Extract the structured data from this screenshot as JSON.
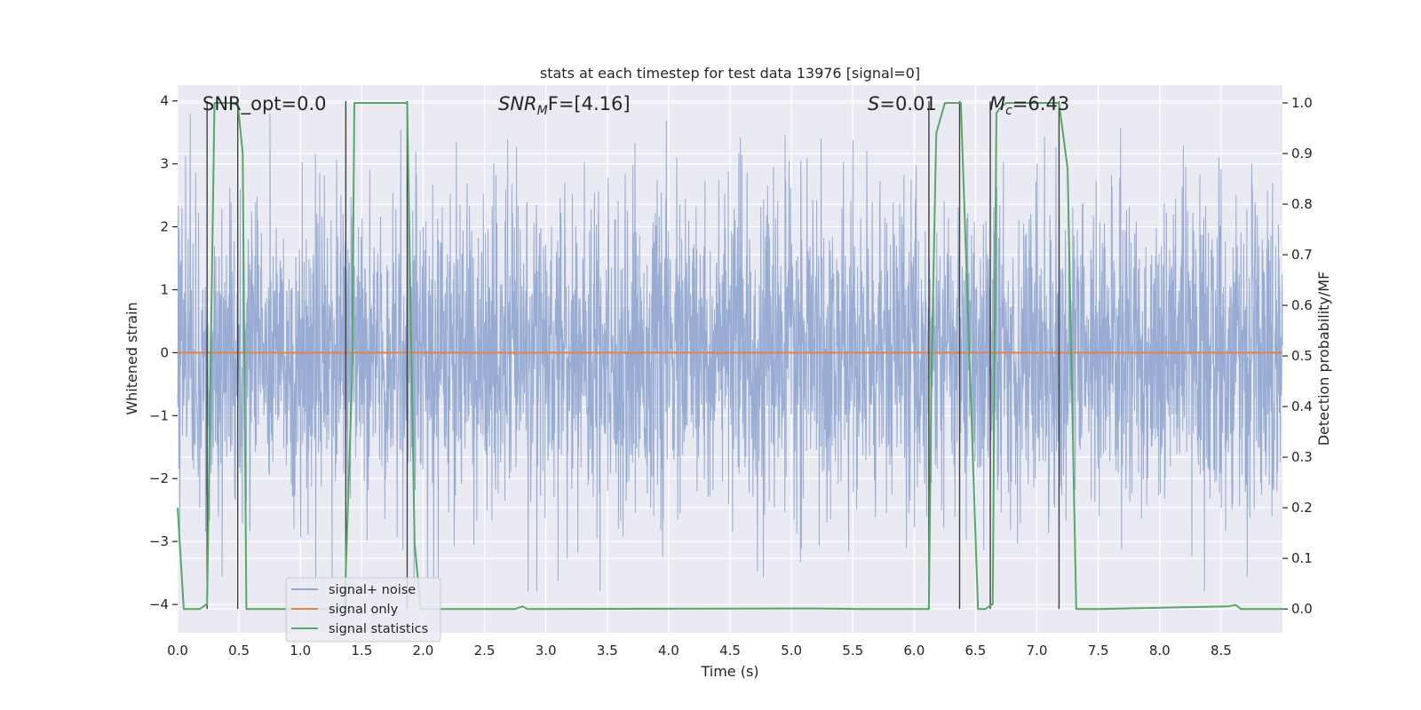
{
  "chart_data": {
    "type": "line",
    "title": "stats at each timestep for test data 13976 [signal=0]",
    "xlabel": "Time (s)",
    "ylabel": "Whitened strain",
    "ylabel_right": "Detection probability/MF",
    "xlim": [
      0.0,
      9.0
    ],
    "ylim": [
      -4.45,
      4.25
    ],
    "ylim_right": [
      -0.047,
      1.035
    ],
    "xticks": [
      "0.0",
      "0.5",
      "1.0",
      "1.5",
      "2.0",
      "2.5",
      "3.0",
      "3.5",
      "4.0",
      "4.5",
      "5.0",
      "5.5",
      "6.0",
      "6.5",
      "7.0",
      "7.5",
      "8.0",
      "8.5"
    ],
    "xtick_values": [
      0.0,
      0.5,
      1.0,
      1.5,
      2.0,
      2.5,
      3.0,
      3.5,
      4.0,
      4.5,
      5.0,
      5.5,
      6.0,
      6.5,
      7.0,
      7.5,
      8.0,
      8.5
    ],
    "yticks": [
      "−4",
      "−3",
      "−2",
      "−1",
      "0",
      "1",
      "2",
      "3",
      "4"
    ],
    "ytick_values": [
      -4,
      -3,
      -2,
      -1,
      0,
      1,
      2,
      3,
      4
    ],
    "yticks_right": [
      "0.0",
      "0.1",
      "0.2",
      "0.3",
      "0.4",
      "0.5",
      "0.6",
      "0.7",
      "0.8",
      "0.9",
      "1.0"
    ],
    "ytick_right_values": [
      0.0,
      0.1,
      0.2,
      0.3,
      0.4,
      0.5,
      0.6,
      0.7,
      0.8,
      0.9,
      1.0
    ],
    "annotations": {
      "snr_opt": "SNR_opt=0.0",
      "snr_mf_main": "SNR",
      "snr_mf_sub": "M",
      "snr_mf_rest": "F=[4.16]",
      "s_main": "S",
      "s_rest": "=0.01",
      "mc_main": "M",
      "mc_sub": "c",
      "mc_rest": "=6.43"
    },
    "series": [
      {
        "name": "signal+ noise",
        "color": "#92a8d1",
        "noise_envelope": {
          "typical_amplitude": 1.7,
          "max_amplitude": 3.8
        }
      },
      {
        "name": "signal only",
        "color": "#dd8452",
        "x": [
          0.0,
          9.0
        ],
        "y": [
          0.0,
          0.0
        ]
      },
      {
        "name": "signal statistics",
        "color": "#55a868",
        "x": [
          0.0,
          0.05,
          0.18,
          0.24,
          0.3,
          0.49,
          0.53,
          0.56,
          1.36,
          1.42,
          1.44,
          1.87,
          1.93,
          1.98,
          2.75,
          2.81,
          2.85,
          3.0,
          5.2,
          5.6,
          6.12,
          6.14,
          6.18,
          6.25,
          6.38,
          6.52,
          6.58,
          6.64,
          6.67,
          6.7,
          6.75,
          7.18,
          7.25,
          7.32,
          7.5,
          8.55,
          8.62,
          8.66,
          9.0
        ],
        "y": [
          0.2,
          0.0,
          0.0,
          0.01,
          1.0,
          1.0,
          0.9,
          0.0,
          0.0,
          0.45,
          1.0,
          1.0,
          0.13,
          0.0,
          0.0,
          0.005,
          0.0,
          0.0,
          0.001,
          0.0,
          0.0,
          0.45,
          0.94,
          1.0,
          1.0,
          0.0,
          0.0,
          0.01,
          0.98,
          0.99,
          1.0,
          1.0,
          0.87,
          0.0,
          0.0,
          0.005,
          0.008,
          0.0,
          0.0
        ]
      }
    ],
    "vlines_x": [
      0.24,
      0.49,
      1.37,
      1.87,
      6.12,
      6.37,
      6.62,
      7.18
    ],
    "legend": [
      "signal+ noise",
      "signal only",
      "signal statistics"
    ],
    "legend_position": "lower-left",
    "grid": true
  },
  "colors": {
    "axes_bg": "#eaeaf2",
    "grid": "#ffffff",
    "noise": "#92a8d1",
    "signal": "#dd8452",
    "stats": "#55a868",
    "vline": "#404040"
  }
}
